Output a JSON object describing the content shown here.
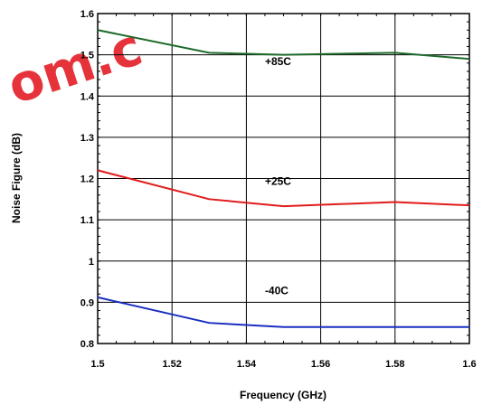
{
  "watermark_text": "om.c",
  "chart_data": {
    "type": "line",
    "title": "",
    "xlabel": "Frequency (GHz)",
    "ylabel": "Noise Figure (dB)",
    "xlim": [
      1.5,
      1.6
    ],
    "ylim": [
      0.8,
      1.6
    ],
    "x_ticks": [
      "1.5",
      "1.52",
      "1.54",
      "1.56",
      "1.58",
      "1.6"
    ],
    "y_ticks": [
      "0.8",
      "0.9",
      "1",
      "1.1",
      "1.2",
      "1.3",
      "1.4",
      "1.5",
      "1.6"
    ],
    "grid": true,
    "x": [
      1.5,
      1.53,
      1.55,
      1.58,
      1.6
    ],
    "series": [
      {
        "name": "+85C",
        "color": "#1e6a2a",
        "values": [
          1.56,
          1.505,
          1.5,
          1.505,
          1.49
        ],
        "label_x": 1.545,
        "label_y": 1.475
      },
      {
        "name": "+25C",
        "color": "#e01b1b",
        "values": [
          1.22,
          1.15,
          1.133,
          1.143,
          1.135
        ],
        "label_x": 1.545,
        "label_y": 1.185
      },
      {
        "name": "-40C",
        "color": "#1a2fbf",
        "values": [
          0.912,
          0.85,
          0.84,
          0.84,
          0.84
        ],
        "label_x": 1.545,
        "label_y": 0.92
      }
    ]
  }
}
